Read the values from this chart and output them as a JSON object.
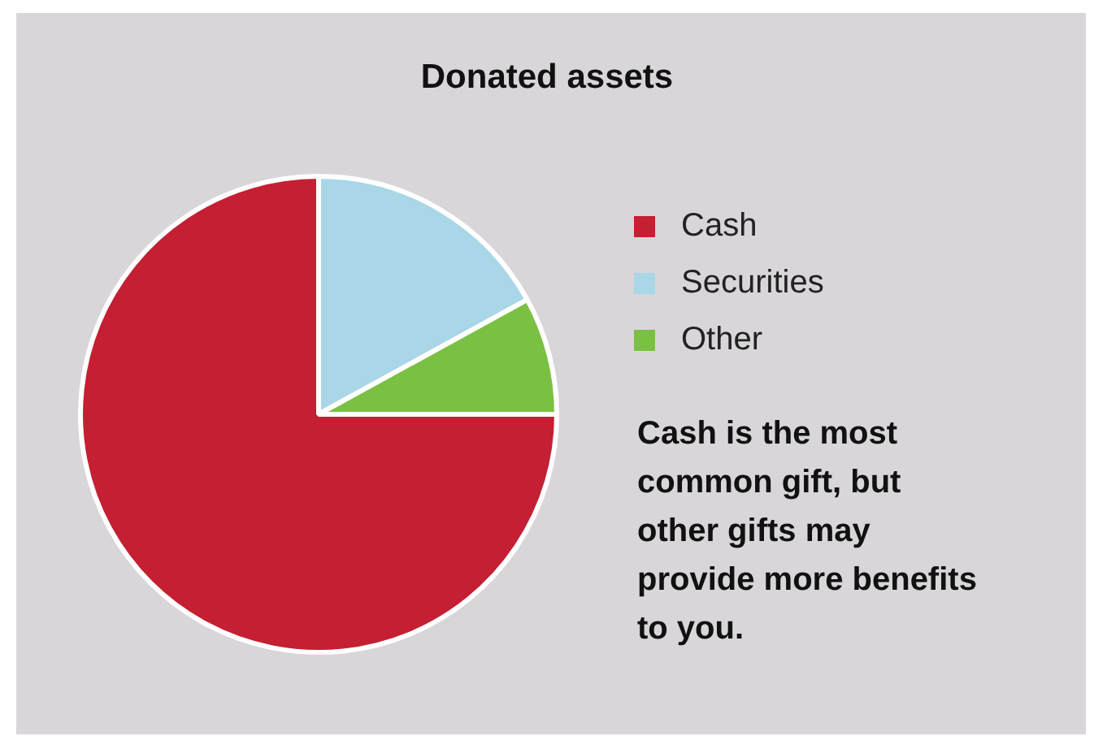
{
  "chart_data": {
    "type": "pie",
    "title": "Donated assets",
    "categories": [
      "Cash",
      "Securities",
      "Other"
    ],
    "values": [
      75,
      17,
      8
    ],
    "colors": [
      "#c41f32",
      "#a9d7e8",
      "#7ac143"
    ],
    "legend": "right",
    "annotations": [
      "Cash is the most common gift, but other gifts may provide more benefits to you."
    ]
  }
}
